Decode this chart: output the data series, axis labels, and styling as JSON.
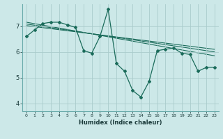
{
  "xlabel": "Humidex (Indice chaleur)",
  "bg_color": "#cce8e8",
  "grid_color": "#aacccc",
  "line_color": "#1a6b5a",
  "xlim": [
    -0.5,
    23.5
  ],
  "ylim": [
    3.7,
    7.85
  ],
  "yticks": [
    4,
    5,
    6,
    7
  ],
  "xticks": [
    0,
    1,
    2,
    3,
    4,
    5,
    6,
    7,
    8,
    9,
    10,
    11,
    12,
    13,
    14,
    15,
    16,
    17,
    18,
    19,
    20,
    21,
    22,
    23
  ],
  "series": [
    [
      0,
      6.6
    ],
    [
      1,
      6.85
    ],
    [
      2,
      7.1
    ],
    [
      3,
      7.15
    ],
    [
      4,
      7.15
    ],
    [
      5,
      7.05
    ],
    [
      6,
      6.95
    ],
    [
      7,
      6.05
    ],
    [
      8,
      5.95
    ],
    [
      9,
      6.6
    ],
    [
      10,
      7.65
    ],
    [
      11,
      5.55
    ],
    [
      12,
      5.25
    ],
    [
      13,
      4.5
    ],
    [
      14,
      4.25
    ],
    [
      15,
      4.85
    ],
    [
      16,
      6.05
    ],
    [
      17,
      6.1
    ],
    [
      18,
      6.15
    ],
    [
      19,
      5.95
    ],
    [
      20,
      5.9
    ],
    [
      21,
      5.25
    ],
    [
      22,
      5.4
    ],
    [
      23,
      5.4
    ]
  ],
  "trend_series": [
    [
      0,
      7.15
    ],
    [
      23,
      5.85
    ]
  ],
  "trend2_series": [
    [
      0,
      7.08
    ],
    [
      23,
      6.0
    ]
  ],
  "trend3_series": [
    [
      0,
      7.02
    ],
    [
      23,
      6.1
    ]
  ]
}
